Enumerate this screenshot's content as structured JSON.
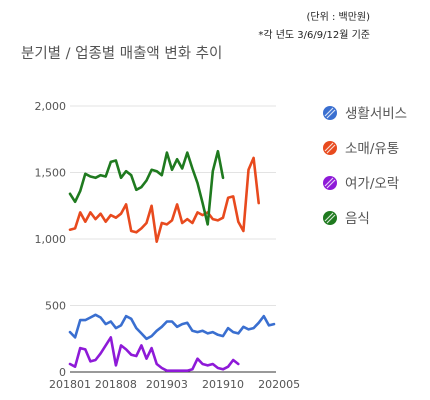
{
  "unit_note": "(단위 : 백만원)",
  "basis_note": "*각 년도 3/6/9/12월 기준",
  "chart_data": {
    "type": "line",
    "title": "분기별 / 업종별 매출액 변화 추이",
    "xlabel": "",
    "ylabel": "",
    "ylim": [
      0,
      2000
    ],
    "yticks": [
      0,
      500,
      1000,
      1500,
      2000
    ],
    "ytick_labels": [
      "0",
      "500",
      "1,000",
      "1,500",
      "2,000"
    ],
    "x_tick_labels": [
      {
        "index": 0,
        "label": "201801"
      },
      {
        "index": 9,
        "label": "201808"
      },
      {
        "index": 19,
        "label": "201903"
      },
      {
        "index": 30,
        "label": "201910"
      },
      {
        "index": 41,
        "label": "202005"
      }
    ],
    "grid": true,
    "legend_position": "right",
    "series": [
      {
        "name": "생활서비스",
        "color": "#3a6fd0",
        "values": [
          300,
          260,
          390,
          390,
          410,
          430,
          410,
          360,
          380,
          330,
          350,
          420,
          400,
          330,
          290,
          250,
          270,
          310,
          340,
          380,
          380,
          340,
          360,
          370,
          310,
          300,
          310,
          290,
          300,
          280,
          270,
          330,
          300,
          290,
          340,
          320,
          330,
          370,
          420,
          350,
          360
        ]
      },
      {
        "name": "소매/유통",
        "color": "#e84a1e",
        "values": [
          1070,
          1080,
          1200,
          1130,
          1200,
          1150,
          1190,
          1130,
          1180,
          1160,
          1190,
          1260,
          1060,
          1050,
          1080,
          1120,
          1250,
          980,
          1120,
          1110,
          1140,
          1260,
          1120,
          1150,
          1120,
          1200,
          1180,
          1200,
          1150,
          1140,
          1160,
          1310,
          1320,
          1130,
          1060,
          1520,
          1610,
          1270
        ]
      },
      {
        "name": "여가/오락",
        "color": "#8e1ad8",
        "values": [
          60,
          40,
          180,
          170,
          80,
          90,
          140,
          200,
          260,
          50,
          200,
          170,
          130,
          120,
          200,
          100,
          180,
          60,
          30,
          10,
          10,
          10,
          10,
          10,
          20,
          100,
          60,
          50,
          60,
          30,
          20,
          40,
          90,
          60
        ]
      },
      {
        "name": "음식",
        "color": "#1f7a1f",
        "values": [
          1340,
          1280,
          1360,
          1490,
          1470,
          1460,
          1480,
          1470,
          1580,
          1590,
          1460,
          1510,
          1480,
          1370,
          1390,
          1440,
          1520,
          1510,
          1480,
          1650,
          1520,
          1600,
          1530,
          1650,
          1530,
          1420,
          1270,
          1110,
          1510,
          1660,
          1460
        ]
      }
    ]
  }
}
